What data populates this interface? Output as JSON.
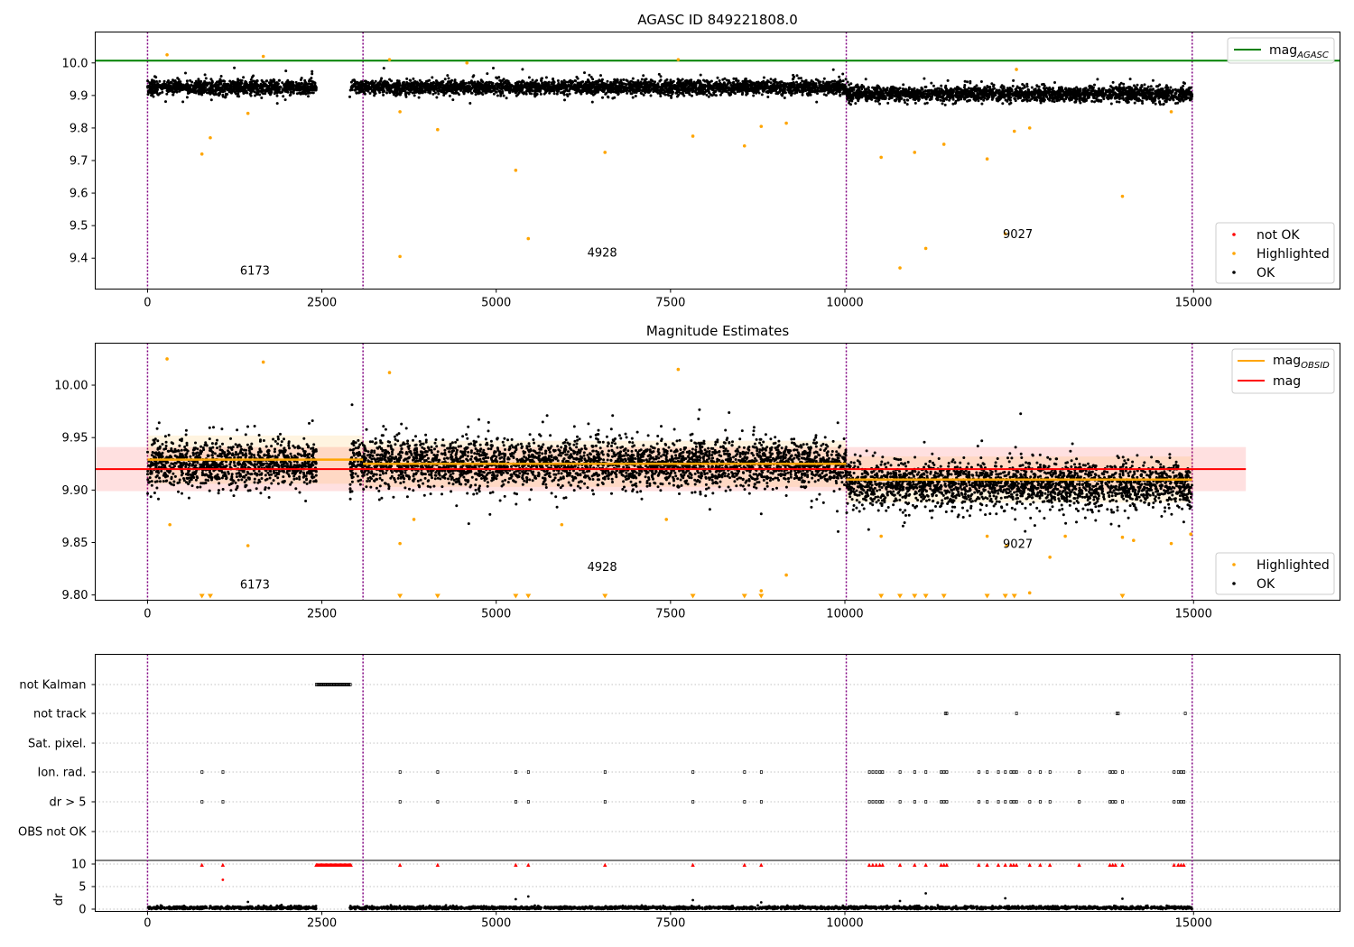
{
  "figure": {
    "panel1_title": "AGASC ID 849221808.0",
    "panel2_title": "Magnitude Estimates"
  },
  "colors": {
    "ok": "#000000",
    "highlighted": "#ffa500",
    "not_ok": "#ff0000",
    "mag_agasc": "#008000",
    "mag_obsid": "#ffa500",
    "mag": "#ff0000",
    "obs_divider": "#800080",
    "grid": "#b0b0b0"
  },
  "legend1": {
    "mag_agasc": {
      "base": "mag",
      "sub": "AGASC"
    },
    "not_ok": "not OK",
    "highlighted": "Highlighted",
    "ok": "OK"
  },
  "legend2": {
    "mag_obsid": {
      "base": "mag",
      "sub": "OBSID"
    },
    "mag": "mag",
    "highlighted": "Highlighted",
    "ok": "OK"
  },
  "chart_data": [
    {
      "type": "scatter",
      "title": "AGASC ID 849221808.0",
      "xlim": [
        -750,
        17100
      ],
      "ylim": [
        9.305,
        10.095
      ],
      "xticks": [
        0,
        2500,
        5000,
        7500,
        10000,
        15000
      ],
      "yticks": [
        9.4,
        9.5,
        9.6,
        9.7,
        9.8,
        9.9,
        10.0
      ],
      "obs_boundaries": [
        0,
        3090,
        10020,
        14980
      ],
      "obsids": [
        {
          "label": "6173",
          "x": 1540,
          "y": 9.35
        },
        {
          "label": "4928",
          "x": 6520,
          "y": 9.405
        },
        {
          "label": "9027",
          "x": 12480,
          "y": 9.462
        }
      ],
      "mag_agasc": 10.007,
      "legend": "upper-right and lower-right",
      "ok_segments": [
        {
          "x0": 0,
          "x1": 2420,
          "center": 9.925,
          "spread": 0.02
        },
        {
          "x0": 2900,
          "x1": 10020,
          "center": 9.925,
          "spread": 0.02
        },
        {
          "x0": 10020,
          "x1": 14980,
          "center": 9.905,
          "spread": 0.02
        }
      ],
      "highlighted_points": [
        {
          "x": 780,
          "y": 9.72
        },
        {
          "x": 900,
          "y": 9.77
        },
        {
          "x": 1440,
          "y": 9.845
        },
        {
          "x": 3620,
          "y": 9.405
        },
        {
          "x": 3620,
          "y": 9.85
        },
        {
          "x": 4160,
          "y": 9.795
        },
        {
          "x": 5280,
          "y": 9.67
        },
        {
          "x": 5460,
          "y": 9.46
        },
        {
          "x": 6560,
          "y": 9.725
        },
        {
          "x": 7820,
          "y": 9.775
        },
        {
          "x": 8560,
          "y": 9.745
        },
        {
          "x": 8800,
          "y": 9.805
        },
        {
          "x": 9160,
          "y": 9.815
        },
        {
          "x": 10520,
          "y": 9.71
        },
        {
          "x": 10790,
          "y": 9.37
        },
        {
          "x": 11000,
          "y": 9.725
        },
        {
          "x": 11160,
          "y": 9.43
        },
        {
          "x": 11420,
          "y": 9.75
        },
        {
          "x": 12040,
          "y": 9.705
        },
        {
          "x": 12300,
          "y": 9.475
        },
        {
          "x": 12430,
          "y": 9.79
        },
        {
          "x": 12650,
          "y": 9.8
        },
        {
          "x": 13980,
          "y": 9.59
        },
        {
          "x": 14680,
          "y": 9.85
        },
        {
          "x": 280,
          "y": 10.025
        },
        {
          "x": 1660,
          "y": 10.02
        },
        {
          "x": 3470,
          "y": 10.01
        },
        {
          "x": 4580,
          "y": 10.0
        },
        {
          "x": 7610,
          "y": 10.01
        },
        {
          "x": 12460,
          "y": 9.98
        }
      ]
    },
    {
      "type": "scatter",
      "title": "Magnitude Estimates",
      "xlim": [
        -750,
        17100
      ],
      "ylim": [
        9.795,
        10.04
      ],
      "xticks": [
        0,
        2500,
        5000,
        7500,
        10000,
        15000
      ],
      "yticks": [
        9.8,
        9.85,
        9.9,
        9.95,
        10.0
      ],
      "obs_boundaries": [
        0,
        3090,
        10020,
        14980
      ],
      "obsids": [
        {
          "label": "6173",
          "x": 1540,
          "y": 9.806
        },
        {
          "label": "4928",
          "x": 6520,
          "y": 9.823
        },
        {
          "label": "9027",
          "x": 12480,
          "y": 9.845
        }
      ],
      "mag": {
        "value": 9.92,
        "band": [
          9.899,
          9.941
        ],
        "x_range": [
          -750,
          15750
        ]
      },
      "mag_obsid": [
        {
          "x0": 0,
          "x1": 3090,
          "value": 9.929,
          "band": [
            9.906,
            9.952
          ]
        },
        {
          "x0": 3090,
          "x1": 10020,
          "value": 9.925,
          "band": [
            9.903,
            9.947
          ]
        },
        {
          "x0": 10020,
          "x1": 14980,
          "value": 9.91,
          "band": [
            9.888,
            9.932
          ]
        }
      ],
      "legend": "upper-right and lower-right",
      "ok_segments": [
        {
          "x0": 0,
          "x1": 2420,
          "center": 9.925,
          "spread": 0.02
        },
        {
          "x0": 2900,
          "x1": 10020,
          "center": 9.925,
          "spread": 0.02
        },
        {
          "x0": 10020,
          "x1": 14980,
          "center": 9.905,
          "spread": 0.02
        }
      ],
      "highlighted_points": [
        {
          "x": 280,
          "y": 10.025
        },
        {
          "x": 320,
          "y": 9.867
        },
        {
          "x": 1440,
          "y": 9.847
        },
        {
          "x": 1660,
          "y": 10.022
        },
        {
          "x": 3470,
          "y": 10.012
        },
        {
          "x": 3620,
          "y": 9.849
        },
        {
          "x": 3820,
          "y": 9.872
        },
        {
          "x": 5940,
          "y": 9.867
        },
        {
          "x": 7440,
          "y": 9.872
        },
        {
          "x": 7610,
          "y": 10.015
        },
        {
          "x": 8800,
          "y": 9.804
        },
        {
          "x": 9160,
          "y": 9.819
        },
        {
          "x": 10520,
          "y": 9.856
        },
        {
          "x": 12040,
          "y": 9.856
        },
        {
          "x": 12320,
          "y": 9.847
        },
        {
          "x": 12940,
          "y": 9.836
        },
        {
          "x": 13160,
          "y": 9.856
        },
        {
          "x": 13980,
          "y": 9.855
        },
        {
          "x": 14140,
          "y": 9.852
        },
        {
          "x": 14680,
          "y": 9.849
        },
        {
          "x": 14960,
          "y": 9.858
        },
        {
          "x": 12650,
          "y": 9.802
        }
      ],
      "clipped_low_x": [
        780,
        900,
        3620,
        4160,
        5280,
        5460,
        6560,
        7820,
        8560,
        8800,
        10520,
        10790,
        11000,
        11160,
        11420,
        12040,
        12300,
        12430,
        13980
      ]
    },
    {
      "type": "scatter",
      "title": "",
      "xlim": [
        -750,
        17100
      ],
      "xticks": [
        0,
        2500,
        5000,
        7500,
        10000,
        15000
      ],
      "obs_boundaries": [
        0,
        3090,
        10020,
        14980
      ],
      "flag_rows": [
        "not Kalman",
        "not track",
        "Sat. pixel.",
        "Ion. rad.",
        "dr > 5",
        "OBS not OK"
      ],
      "flags": {
        "not Kalman": {
          "range": [
            2420,
            2920
          ]
        },
        "not track": {
          "x": [
            11440,
            11460,
            12460,
            13900,
            13920,
            14880
          ]
        },
        "Sat. pixel.": {
          "x": []
        },
        "Ion. rad.": {
          "x": [
            780,
            1080,
            3620,
            4160,
            5280,
            5460,
            6560,
            7820,
            8560,
            8800,
            10350,
            10400,
            10450,
            10500,
            10540,
            10790,
            11000,
            11160,
            11380,
            11420,
            11460,
            11920,
            12040,
            12200,
            12300,
            12380,
            12420,
            12460,
            12650,
            12800,
            12940,
            13360,
            13800,
            13840,
            13880,
            13980,
            14720,
            14780,
            14820,
            14860
          ]
        },
        "dr > 5": {
          "x": [
            780,
            1080,
            3620,
            4160,
            5280,
            5460,
            6560,
            7820,
            8560,
            8800,
            10350,
            10400,
            10450,
            10500,
            10540,
            10790,
            11000,
            11160,
            11380,
            11420,
            11460,
            11920,
            12040,
            12200,
            12300,
            12380,
            12420,
            12460,
            12650,
            12800,
            12940,
            13360,
            13800,
            13840,
            13880,
            13980,
            14720,
            14780,
            14820,
            14860
          ]
        },
        "OBS not OK": {
          "x": []
        }
      },
      "dr": {
        "ylabel": "dr",
        "yticks": [
          0,
          5,
          10
        ],
        "ylim": [
          -0.5,
          10.5
        ],
        "clip": 10,
        "baseline": 0.3,
        "outliers": [
          {
            "x": 1080,
            "y": 6.5
          },
          {
            "x": 11160,
            "y": 3.5
          },
          {
            "x": 5280,
            "y": 2.2
          },
          {
            "x": 5460,
            "y": 2.8
          },
          {
            "x": 7820,
            "y": 2.0
          },
          {
            "x": 10790,
            "y": 1.8
          },
          {
            "x": 12300,
            "y": 2.4
          },
          {
            "x": 13980,
            "y": 2.3
          },
          {
            "x": 1440,
            "y": 1.6
          },
          {
            "x": 8800,
            "y": 1.5
          }
        ],
        "clipped_x": [
          780,
          1080,
          3620,
          4160,
          5280,
          5460,
          6560,
          7820,
          8560,
          8800,
          10350,
          10400,
          10450,
          10500,
          10540,
          10790,
          11000,
          11160,
          11380,
          11420,
          11460,
          11920,
          12040,
          12200,
          12300,
          12380,
          12420,
          12460,
          12650,
          12800,
          12940,
          13360,
          13800,
          13840,
          13880,
          13980,
          14720,
          14780,
          14820,
          14860
        ],
        "clipped_range": [
          2420,
          2920
        ]
      }
    }
  ]
}
